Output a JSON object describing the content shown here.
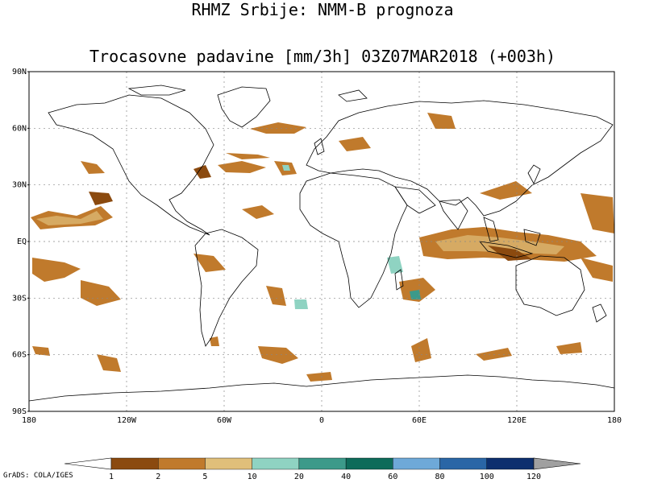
{
  "title": {
    "line1": "RHMZ Srbije: NMM-B prognoza",
    "line2": "Trocasovne padavine [mm/3h] 03Z07MAR2018 (+003h)"
  },
  "axes": {
    "lat_labels": [
      "90N",
      "60N",
      "30N",
      "EQ",
      "30S",
      "60S",
      "90S"
    ],
    "lat_values": [
      90,
      60,
      30,
      0,
      -30,
      -60,
      -90
    ],
    "lon_labels": [
      "180",
      "120W",
      "60W",
      "0",
      "60E",
      "120E",
      "180"
    ],
    "lon_values": [
      -180,
      -120,
      -60,
      0,
      60,
      120,
      180
    ],
    "grid": true
  },
  "colorbar": {
    "labels": [
      "1",
      "2",
      "5",
      "10",
      "20",
      "40",
      "60",
      "80",
      "100",
      "120"
    ],
    "colors": [
      "#8b4a0f",
      "#c07a2c",
      "#e0bf7a",
      "#8fd3c2",
      "#3c9a8a",
      "#0e6b5a",
      "#6ea9d8",
      "#2a66a6",
      "#0d2f6e"
    ],
    "under_color": "#ffffff",
    "over_color": "#a0a0a0"
  },
  "credit": "GrADS: COLA/IGES"
}
